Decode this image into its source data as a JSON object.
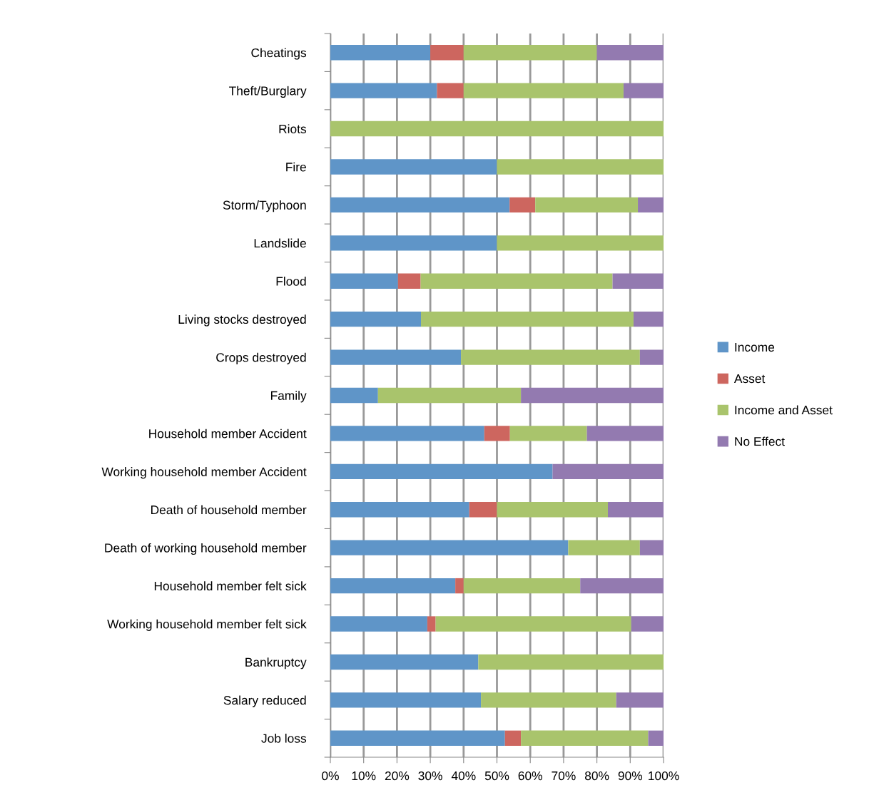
{
  "chart_data": {
    "type": "bar",
    "orientation": "horizontal",
    "stacked": true,
    "categories": [
      "Cheatings",
      "Theft/Burglary",
      "Riots",
      "Fire",
      "Storm/Typhoon",
      "Landslide",
      "Flood",
      "Living stocks destroyed",
      "Crops destroyed",
      "Family",
      "Household member Accident",
      "Working household member Accident",
      "Death of household member",
      "Death of working household member",
      "Household member felt sick",
      "Working household member felt sick",
      "Bankruptcy",
      "Salary reduced",
      "Job loss"
    ],
    "series": [
      {
        "name": "Income",
        "color": "#5f95c8",
        "values": [
          30,
          32,
          0,
          50,
          53.8,
          50,
          20.3,
          27.2,
          39.2,
          14.3,
          46.2,
          66.7,
          41.7,
          71.4,
          37.5,
          29.1,
          44.4,
          45.2,
          52.4
        ]
      },
      {
        "name": "Asset",
        "color": "#cd665f",
        "values": [
          10,
          8,
          0,
          0,
          7.7,
          0,
          6.8,
          0,
          0,
          0,
          7.7,
          0,
          8.3,
          0,
          2.5,
          2.5,
          0,
          0,
          4.8
        ]
      },
      {
        "name": "Income and Asset",
        "color": "#a9c46c",
        "values": [
          40,
          48,
          100,
          50,
          30.8,
          50,
          57.6,
          63.8,
          53.7,
          42.9,
          23.1,
          0,
          33.3,
          21.5,
          35,
          58.7,
          55.6,
          40.6,
          38.2
        ]
      },
      {
        "name": "No Effect",
        "color": "#937ab0",
        "values": [
          20,
          12,
          0,
          0,
          7.7,
          0,
          15.3,
          9.0,
          7.1,
          42.8,
          23.0,
          33.3,
          16.7,
          7.1,
          25,
          9.7,
          0,
          14.2,
          4.6
        ]
      }
    ],
    "xlim": [
      0,
      100
    ],
    "xticks": [
      {
        "value": 0,
        "label": "0%"
      },
      {
        "value": 10,
        "label": "10%"
      },
      {
        "value": 20,
        "label": "20%"
      },
      {
        "value": 30,
        "label": "30%"
      },
      {
        "value": 40,
        "label": "40%"
      },
      {
        "value": 50,
        "label": "50%"
      },
      {
        "value": 60,
        "label": "60%"
      },
      {
        "value": 70,
        "label": "70%"
      },
      {
        "value": 80,
        "label": "80%"
      },
      {
        "value": 90,
        "label": "90%"
      },
      {
        "value": 100,
        "label": "100%"
      }
    ],
    "grid": "x",
    "legend": "right"
  }
}
